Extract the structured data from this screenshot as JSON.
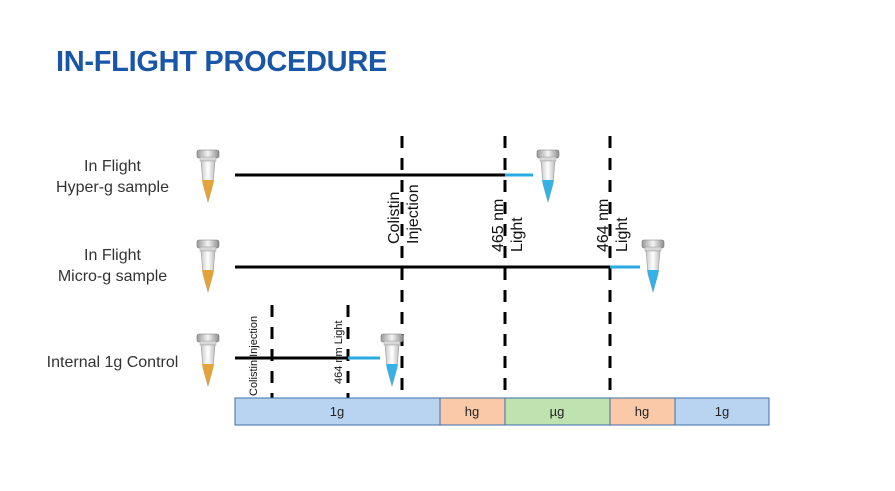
{
  "title": "IN-FLIGHT PROCEDURE",
  "rows": [
    {
      "line1": "In Flight",
      "line2": "Hyper-g sample"
    },
    {
      "line1": "In Flight",
      "line2": "Micro-g sample"
    },
    {
      "line1": "Internal 1g Control",
      "line2": ""
    }
  ],
  "event_labels": {
    "colistin_line1": "Colistin",
    "colistin_line2": "Injection",
    "light465_line1": "465 nm",
    "light465_line2": "Light",
    "light464_line1": "464 nm",
    "light464_line2": "Light",
    "control_colistin": "Colistin Injection",
    "control_light": "464 nm Light"
  },
  "phases": [
    {
      "label": "1g",
      "color": "#b8d4f0"
    },
    {
      "label": "hg",
      "color": "#f9c9a8"
    },
    {
      "label": "µg",
      "color": "#bfe3b0"
    },
    {
      "label": "hg",
      "color": "#f9c9a8"
    },
    {
      "label": "1g",
      "color": "#b8d4f0"
    }
  ],
  "colors": {
    "title": "#1a56a8",
    "timeline": "#000000",
    "active_segment": "#29abe2",
    "tube_orange": "#e3a33a",
    "tube_blue": "#36b1e6",
    "phase_border": "#3d6fa8"
  },
  "icons": [
    "tube-orange-icon",
    "tube-blue-icon"
  ]
}
